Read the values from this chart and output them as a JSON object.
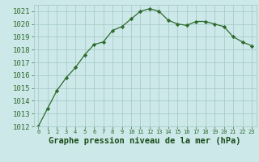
{
  "x": [
    0,
    1,
    2,
    3,
    4,
    5,
    6,
    7,
    8,
    9,
    10,
    11,
    12,
    13,
    14,
    15,
    16,
    17,
    18,
    19,
    20,
    21,
    22,
    23
  ],
  "y": [
    1012.0,
    1013.4,
    1014.8,
    1015.8,
    1016.6,
    1017.6,
    1018.4,
    1018.6,
    1019.5,
    1019.8,
    1020.4,
    1021.0,
    1021.2,
    1021.0,
    1020.3,
    1020.0,
    1019.9,
    1020.2,
    1020.2,
    1020.0,
    1019.8,
    1019.0,
    1018.6,
    1018.3
  ],
  "line_color": "#2d6b2d",
  "marker": "D",
  "marker_size": 2.2,
  "bg_color": "#cce8e8",
  "grid_color": "#aacccc",
  "xlabel": "Graphe pression niveau de la mer (hPa)",
  "xlabel_color": "#1a4d1a",
  "tick_color": "#2d6b2d",
  "ylim_min": 1012,
  "ylim_max": 1021,
  "ytick_step": 1,
  "xlim_min": 0,
  "xlim_max": 23,
  "label_fontsize": 6.5,
  "xlabel_fontsize": 7.5
}
